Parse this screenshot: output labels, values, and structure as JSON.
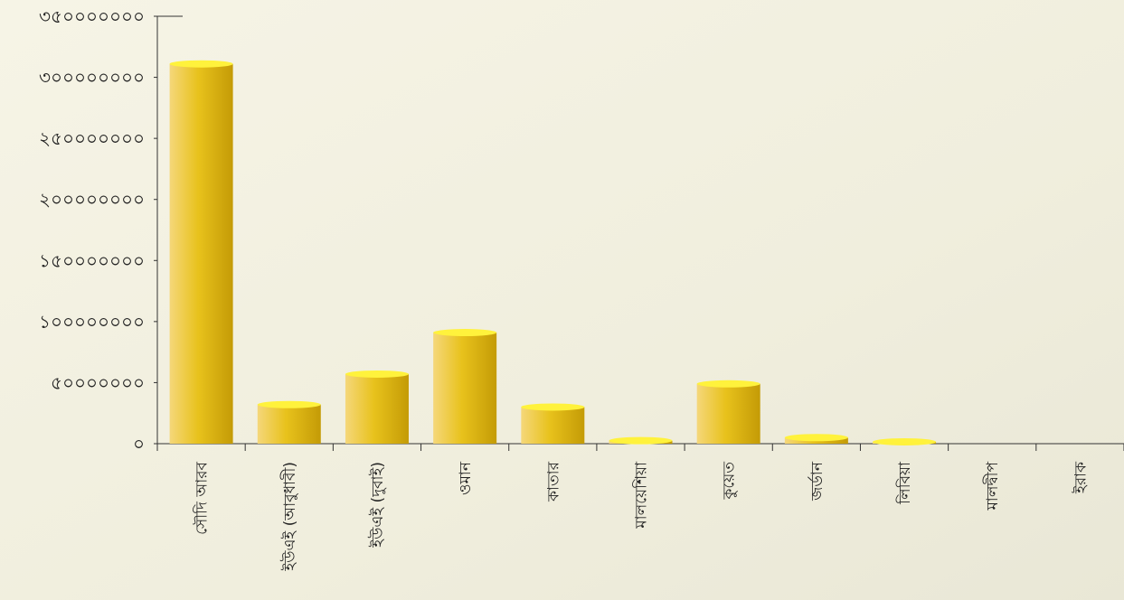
{
  "chart_data": {
    "type": "bar",
    "title": "",
    "xlabel": "",
    "ylabel": "",
    "ylim": [
      0,
      350000000
    ],
    "yticks": [
      0,
      50000000,
      100000000,
      150000000,
      200000000,
      250000000,
      300000000,
      350000000
    ],
    "ytick_labels": [
      "০",
      "৫০০০০০০০",
      "১০০০০০০০০",
      "১৫০০০০০০০",
      "২০০০০০০০০",
      "২৫০০০০০০০",
      "৩০০০০০০০০",
      "৩৫০০০০০০০"
    ],
    "categories": [
      "সৌদি আরব",
      "ইউএই (আবুধাবী)",
      "ইউএই (দুবাই)",
      "ওমান",
      "কাতার",
      "মালয়েশিয়া",
      "কুয়েত",
      "জর্ডান",
      "লিবিয়া",
      "মালদ্বীপ",
      "ইরাক"
    ],
    "values": [
      311000000,
      32000000,
      57000000,
      91000000,
      30000000,
      2500000,
      49000000,
      5000000,
      1500000,
      0,
      0
    ],
    "grid": false,
    "legend": "none",
    "colors": {
      "bar_light": "#f5d77a",
      "bar_mid": "#e8c21c",
      "bar_dark": "#c49b06",
      "bar_top": "#fff23c",
      "axis": "#333333",
      "background": "#f3f1e1"
    }
  }
}
